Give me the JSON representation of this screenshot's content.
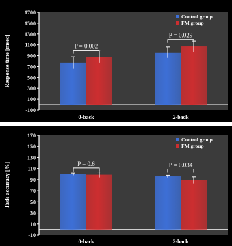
{
  "chart_data": [
    {
      "type": "bar",
      "ylabel": "Response time [msec]",
      "categories": [
        "0-back",
        "2-back"
      ],
      "ylim": [
        -100,
        1700
      ],
      "yticks": [
        -100,
        100,
        300,
        500,
        700,
        900,
        1100,
        1300,
        1500,
        1700
      ],
      "legend_position": "top-right",
      "series": [
        {
          "name": "Control group",
          "color": "#3d6fd6",
          "values": [
            770,
            960
          ],
          "errors": [
            110,
            100
          ]
        },
        {
          "name": "FM group",
          "color": "#cc2e30",
          "values": [
            880,
            1070
          ],
          "errors": [
            110,
            100
          ]
        }
      ],
      "annotations": [
        {
          "category_index": 0,
          "text": "P = 0.002",
          "y": 1000
        },
        {
          "category_index": 1,
          "text": "P = 0.029",
          "y": 1200
        }
      ]
    },
    {
      "type": "bar",
      "ylabel": "Task accuracy [%]",
      "categories": [
        "0-back",
        "2-back"
      ],
      "ylim": [
        -10,
        170
      ],
      "yticks": [
        -10,
        10,
        30,
        50,
        70,
        90,
        110,
        130,
        150,
        170
      ],
      "legend_position": "top-right",
      "series": [
        {
          "name": "Control group",
          "color": "#3d6fd6",
          "values": [
            100,
            96
          ],
          "errors": [
            2,
            2
          ]
        },
        {
          "name": "FM group",
          "color": "#cc2e30",
          "values": [
            99,
            89
          ],
          "errors": [
            5,
            6
          ]
        }
      ],
      "annotations": [
        {
          "category_index": 0,
          "text": "P = 0.6",
          "y": 111
        },
        {
          "category_index": 1,
          "text": "P = 0.034",
          "y": 109
        }
      ]
    }
  ]
}
